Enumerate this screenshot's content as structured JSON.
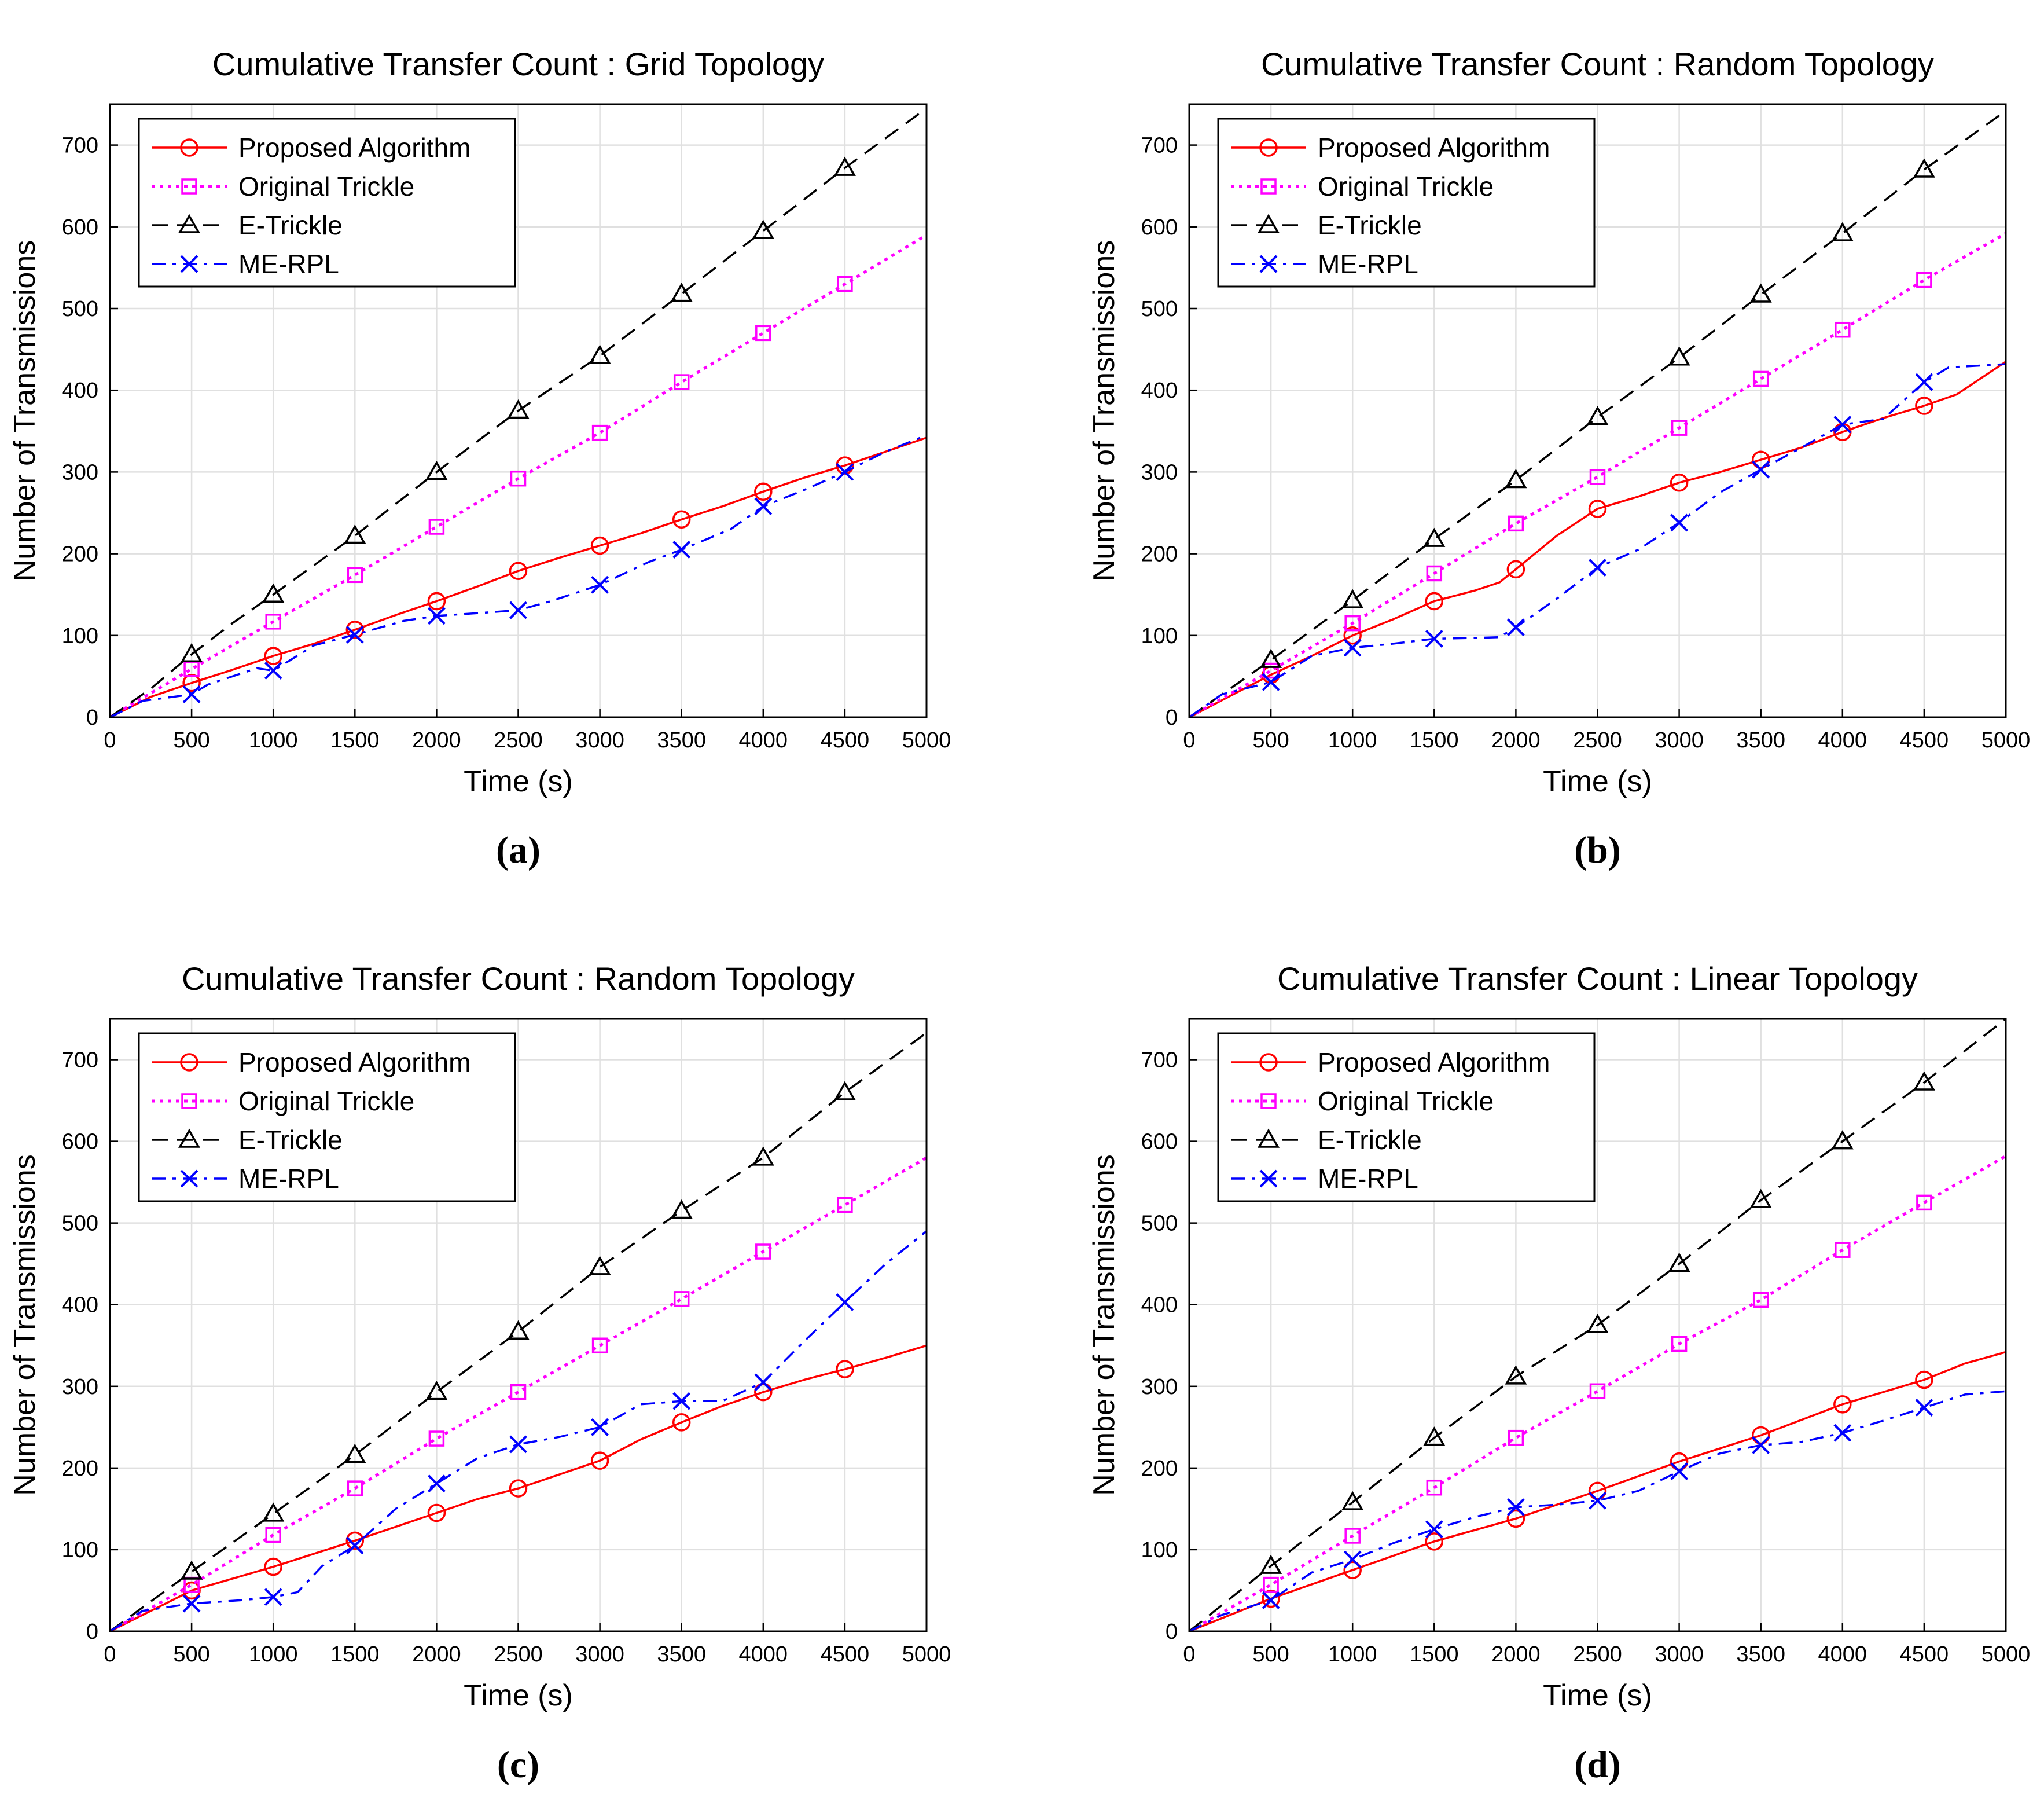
{
  "chart_data": [
    {
      "type": "line",
      "panel": "(a)",
      "title": "Cumulative Transfer Count : Grid Topology",
      "xlabel": "Time (s)",
      "ylabel": "Number of Transmissions",
      "xlim": [
        0,
        5000
      ],
      "ylim": [
        0,
        750
      ],
      "xticks": [
        0,
        500,
        1000,
        1500,
        2000,
        2500,
        3000,
        3500,
        4000,
        4500,
        5000
      ],
      "yticks": [
        0,
        100,
        200,
        300,
        400,
        500,
        600,
        700
      ],
      "grid": true,
      "legend_position": "top-left",
      "series": [
        {
          "name": "Proposed Algorithm",
          "color": "#ff0000",
          "dash": "solid",
          "marker": "circle",
          "x": [
            0,
            250,
            500,
            750,
            1000,
            1250,
            1500,
            1750,
            2000,
            2250,
            2500,
            2750,
            3000,
            3250,
            3500,
            3750,
            4000,
            4250,
            4500,
            4750,
            5000
          ],
          "y": [
            0,
            25,
            42,
            58,
            75,
            90,
            107,
            125,
            142,
            160,
            179,
            195,
            210,
            225,
            242,
            258,
            276,
            293,
            308,
            325,
            342
          ]
        },
        {
          "name": "Original Trickle",
          "color": "#ff00ff",
          "dash": "dotted",
          "marker": "square",
          "x": [
            0,
            500,
            1000,
            1500,
            2000,
            2500,
            3000,
            3500,
            4000,
            4500,
            5000
          ],
          "y": [
            0,
            59,
            117,
            174,
            233,
            292,
            348,
            410,
            470,
            530,
            590
          ]
        },
        {
          "name": "E-Trickle",
          "color": "#000000",
          "dash": "dashed",
          "marker": "triangle",
          "x": [
            0,
            250,
            500,
            750,
            1000,
            1500,
            2000,
            2500,
            3000,
            3500,
            4000,
            4500,
            5000
          ],
          "y": [
            0,
            35,
            77,
            115,
            150,
            222,
            300,
            375,
            442,
            518,
            595,
            672,
            745
          ]
        },
        {
          "name": "ME-RPL",
          "color": "#0000ff",
          "dash": "dashdot",
          "marker": "x",
          "x": [
            0,
            200,
            500,
            600,
            900,
            1000,
            1250,
            1500,
            1800,
            2000,
            2300,
            2500,
            2700,
            3000,
            3300,
            3500,
            3800,
            4000,
            4250,
            4500,
            4750,
            5000
          ],
          "y": [
            0,
            20,
            28,
            40,
            60,
            57,
            88,
            101,
            118,
            124,
            128,
            131,
            142,
            162,
            190,
            205,
            230,
            258,
            278,
            300,
            325,
            345
          ]
        }
      ]
    },
    {
      "type": "line",
      "panel": "(b)",
      "title": "Cumulative Transfer Count : Random Topology",
      "xlabel": "Time (s)",
      "ylabel": "Number of Transmissions",
      "xlim": [
        0,
        5000
      ],
      "ylim": [
        0,
        750
      ],
      "xticks": [
        0,
        500,
        1000,
        1500,
        2000,
        2500,
        3000,
        3500,
        4000,
        4500,
        5000
      ],
      "yticks": [
        0,
        100,
        200,
        300,
        400,
        500,
        600,
        700
      ],
      "grid": true,
      "legend_position": "top-left",
      "series": [
        {
          "name": "Proposed Algorithm",
          "color": "#ff0000",
          "dash": "solid",
          "marker": "circle",
          "x": [
            0,
            500,
            750,
            1000,
            1250,
            1500,
            1750,
            1900,
            2000,
            2250,
            2500,
            2750,
            3000,
            3250,
            3500,
            3750,
            4000,
            4250,
            4500,
            4700,
            5000
          ],
          "y": [
            0,
            52,
            75,
            100,
            120,
            142,
            155,
            165,
            181,
            222,
            255,
            270,
            287,
            300,
            315,
            330,
            349,
            366,
            381,
            395,
            435
          ]
        },
        {
          "name": "Original Trickle",
          "color": "#ff00ff",
          "dash": "dotted",
          "marker": "square",
          "x": [
            0,
            500,
            1000,
            1500,
            2000,
            2500,
            3000,
            3500,
            4000,
            4500,
            5000
          ],
          "y": [
            0,
            57,
            115,
            176,
            237,
            294,
            354,
            414,
            474,
            535,
            592
          ]
        },
        {
          "name": "E-Trickle",
          "color": "#000000",
          "dash": "dashed",
          "marker": "triangle",
          "x": [
            0,
            500,
            1000,
            1500,
            2000,
            2500,
            3000,
            3500,
            4000,
            4500,
            5000
          ],
          "y": [
            0,
            70,
            143,
            218,
            290,
            367,
            440,
            517,
            592,
            670,
            742
          ]
        },
        {
          "name": "ME-RPL",
          "color": "#0000ff",
          "dash": "dashdot",
          "marker": "x",
          "x": [
            0,
            200,
            500,
            750,
            1000,
            1250,
            1500,
            1750,
            1900,
            2000,
            2250,
            2500,
            2750,
            3000,
            3250,
            3500,
            3750,
            4000,
            4250,
            4500,
            4650,
            5000
          ],
          "y": [
            0,
            28,
            43,
            75,
            85,
            90,
            96,
            97,
            98,
            110,
            145,
            183,
            205,
            238,
            275,
            303,
            330,
            358,
            365,
            410,
            428,
            432
          ]
        }
      ]
    },
    {
      "type": "line",
      "panel": "(c)",
      "title": "Cumulative Transfer Count : Random Topology",
      "xlabel": "Time (s)",
      "ylabel": "Number of Transmissions",
      "xlim": [
        0,
        5000
      ],
      "ylim": [
        0,
        750
      ],
      "xticks": [
        0,
        500,
        1000,
        1500,
        2000,
        2500,
        3000,
        3500,
        4000,
        4500,
        5000
      ],
      "yticks": [
        0,
        100,
        200,
        300,
        400,
        500,
        600,
        700
      ],
      "grid": true,
      "legend_position": "top-left",
      "series": [
        {
          "name": "Proposed Algorithm",
          "color": "#ff0000",
          "dash": "solid",
          "marker": "circle",
          "x": [
            0,
            500,
            1000,
            1500,
            2000,
            2250,
            2500,
            2750,
            3000,
            3250,
            3500,
            3750,
            4000,
            4250,
            4500,
            4750,
            5000
          ],
          "y": [
            0,
            50,
            79,
            111,
            145,
            162,
            175,
            192,
            209,
            235,
            256,
            276,
            293,
            308,
            321,
            335,
            350
          ]
        },
        {
          "name": "Original Trickle",
          "color": "#ff00ff",
          "dash": "dotted",
          "marker": "square",
          "x": [
            0,
            500,
            1000,
            1500,
            2000,
            2500,
            3000,
            3500,
            4000,
            4500,
            5000
          ],
          "y": [
            0,
            57,
            118,
            175,
            236,
            293,
            350,
            407,
            465,
            522,
            580
          ]
        },
        {
          "name": "E-Trickle",
          "color": "#000000",
          "dash": "dashed",
          "marker": "triangle",
          "x": [
            0,
            500,
            1000,
            1500,
            2000,
            2500,
            3000,
            3500,
            4000,
            4500,
            5000
          ],
          "y": [
            0,
            73,
            144,
            216,
            293,
            367,
            446,
            515,
            580,
            660,
            733
          ]
        },
        {
          "name": "ME-RPL",
          "color": "#0000ff",
          "dash": "dashdot",
          "marker": "x",
          "x": [
            0,
            200,
            500,
            800,
            1000,
            1150,
            1300,
            1500,
            1750,
            2000,
            2250,
            2500,
            2750,
            3000,
            3250,
            3500,
            3750,
            4000,
            4250,
            4500,
            4750,
            5000
          ],
          "y": [
            0,
            25,
            34,
            38,
            42,
            48,
            80,
            105,
            150,
            181,
            212,
            229,
            238,
            250,
            278,
            282,
            282,
            305,
            355,
            403,
            450,
            490
          ]
        }
      ]
    },
    {
      "type": "line",
      "panel": "(d)",
      "title": "Cumulative Transfer Count : Linear Topology",
      "xlabel": "Time (s)",
      "ylabel": "Number of Transmissions",
      "xlim": [
        0,
        5000
      ],
      "ylim": [
        0,
        750
      ],
      "xticks": [
        0,
        500,
        1000,
        1500,
        2000,
        2500,
        3000,
        3500,
        4000,
        4500,
        5000
      ],
      "yticks": [
        0,
        100,
        200,
        300,
        400,
        500,
        600,
        700
      ],
      "grid": true,
      "legend_position": "top-left",
      "series": [
        {
          "name": "Proposed Algorithm",
          "color": "#ff0000",
          "dash": "solid",
          "marker": "circle",
          "x": [
            0,
            500,
            1000,
            1500,
            2000,
            2500,
            3000,
            3500,
            4000,
            4500,
            4750,
            5000
          ],
          "y": [
            0,
            40,
            75,
            110,
            138,
            172,
            208,
            240,
            278,
            308,
            328,
            342
          ]
        },
        {
          "name": "Original Trickle",
          "color": "#ff00ff",
          "dash": "dotted",
          "marker": "square",
          "x": [
            0,
            500,
            1000,
            1500,
            2000,
            2500,
            3000,
            3500,
            4000,
            4500,
            5000
          ],
          "y": [
            0,
            57,
            117,
            176,
            237,
            294,
            352,
            406,
            467,
            525,
            582
          ]
        },
        {
          "name": "E-Trickle",
          "color": "#000000",
          "dash": "dashed",
          "marker": "triangle",
          "x": [
            0,
            500,
            1000,
            1500,
            2000,
            2500,
            3000,
            3500,
            4000,
            4500,
            5000
          ],
          "y": [
            0,
            80,
            158,
            237,
            312,
            375,
            450,
            528,
            600,
            672,
            750
          ]
        },
        {
          "name": "ME-RPL",
          "color": "#0000ff",
          "dash": "dashdot",
          "marker": "x",
          "x": [
            0,
            200,
            500,
            750,
            1000,
            1250,
            1500,
            1750,
            2000,
            2250,
            2500,
            2750,
            3000,
            3250,
            3500,
            3750,
            4000,
            4250,
            4500,
            4750,
            5000
          ],
          "y": [
            0,
            20,
            38,
            72,
            88,
            108,
            125,
            140,
            152,
            155,
            160,
            172,
            196,
            218,
            228,
            232,
            243,
            258,
            274,
            290,
            294
          ]
        }
      ]
    }
  ]
}
